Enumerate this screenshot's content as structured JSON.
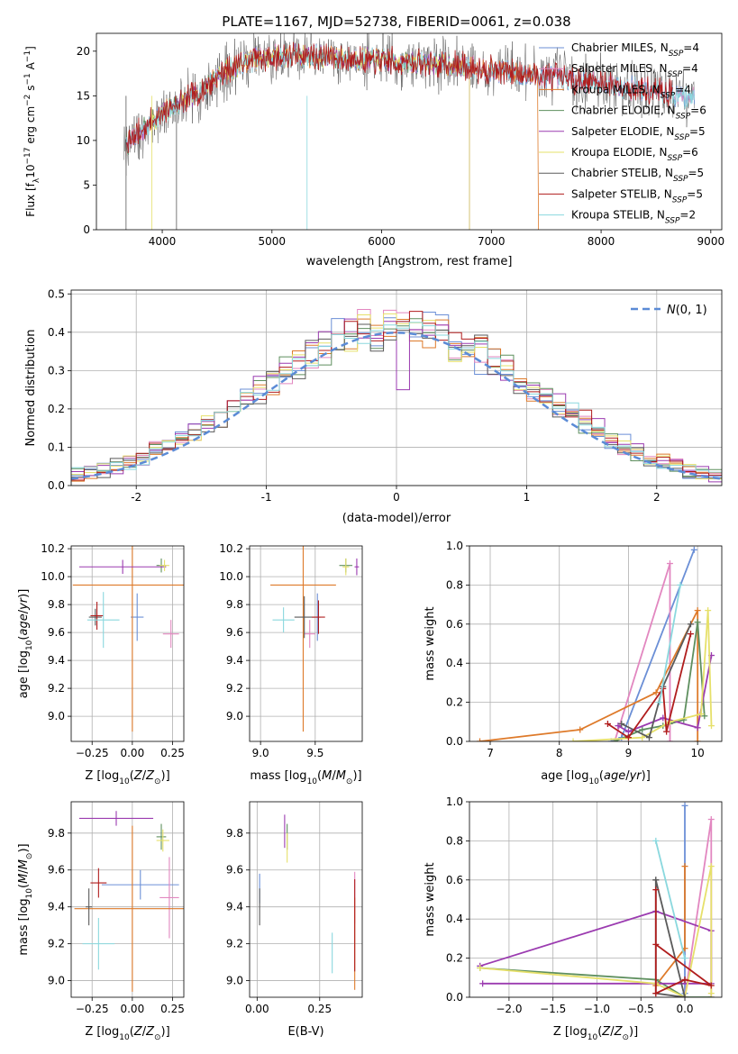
{
  "figure_title": "PLATE=1167, MJD=52738, FIBERID=0061, z=0.038",
  "colors": {
    "series": [
      "#6b8fd6",
      "#e287c0",
      "#de7a2a",
      "#5e8f5e",
      "#9b3bb0",
      "#e6e06a",
      "#5a5a5a",
      "#b01d1d",
      "#8ad8de"
    ],
    "grid": "#b0b0b0"
  },
  "models": [
    {
      "name": "Chabrier MILES, N",
      "sub": "SSP",
      "tail": "=4"
    },
    {
      "name": "Salpeter MILES, N",
      "sub": "SSP",
      "tail": "=4"
    },
    {
      "name": "Kroupa MILES, N",
      "sub": "SSP",
      "tail": "=4"
    },
    {
      "name": "Chabrier ELODIE, N",
      "sub": "SSP",
      "tail": "=6"
    },
    {
      "name": "Salpeter ELODIE, N",
      "sub": "SSP",
      "tail": "=5"
    },
    {
      "name": "Kroupa ELODIE, N",
      "sub": "SSP",
      "tail": "=6"
    },
    {
      "name": "Chabrier STELIB, N",
      "sub": "SSP",
      "tail": "=5"
    },
    {
      "name": "Salpeter STELIB, N",
      "sub": "SSP",
      "tail": "=5"
    },
    {
      "name": "Kroupa STELIB, N",
      "sub": "SSP",
      "tail": "=2"
    }
  ],
  "chart_data": [
    {
      "id": "spectrum",
      "type": "line",
      "xlabel": "wavelength [Angstrom, rest frame]",
      "ylabel": "Flux [fλ10⁻¹⁷ erg cm⁻² s⁻¹ A⁻¹]",
      "xlim": [
        3400,
        9100
      ],
      "ylim": [
        0,
        22
      ],
      "xticks": [
        4000,
        5000,
        6000,
        7000,
        8000,
        9000
      ],
      "yticks": [
        0,
        5,
        10,
        15,
        20
      ],
      "continuum_x": [
        3670,
        3800,
        3950,
        4100,
        4300,
        4500,
        4700,
        4900,
        5100,
        5300,
        5600,
        5900,
        6200,
        6500,
        6800,
        7100,
        7400,
        7700,
        8000,
        8300,
        8600,
        8850
      ],
      "continuum_y": [
        9.5,
        11,
        12.5,
        13.8,
        15,
        17.2,
        18.5,
        19.2,
        19.5,
        19.5,
        19.3,
        19,
        18.8,
        18.6,
        18.2,
        17.8,
        17.3,
        16.9,
        16.4,
        15.9,
        15.3,
        14.8
      ],
      "series_ranges": [
        [
          3670,
          8850
        ],
        [
          3670,
          8850
        ],
        [
          3670,
          7420
        ],
        [
          3670,
          6800
        ],
        [
          3670,
          6800
        ],
        [
          3900,
          6800
        ],
        [
          3650,
          8850
        ],
        [
          3670,
          8650
        ],
        [
          3670,
          8850
        ]
      ]
    },
    {
      "id": "residuals",
      "type": "histogram",
      "xlabel": "(data-model)/error",
      "ylabel": "Normed distribution",
      "xlim": [
        -2.5,
        2.5
      ],
      "ylim": [
        0,
        0.51
      ],
      "xticks": [
        -2,
        -1,
        0,
        1,
        2
      ],
      "yticks": [
        0.0,
        0.1,
        0.2,
        0.3,
        0.4,
        0.5
      ],
      "bin_width": 0.1,
      "reference": {
        "label": "N(0,1)",
        "mean": 0,
        "sigma": 1
      }
    },
    {
      "id": "age_vs_Z",
      "type": "scatter",
      "xlabel": "Z [log10(Z/Z⊙)]",
      "ylabel": "age  [log10(age/yr)]",
      "xlim": [
        -0.38,
        0.32
      ],
      "ylim": [
        8.82,
        10.22
      ],
      "xticks": [
        -0.25,
        0,
        0.25
      ],
      "xticklabels": [
        "−0.25",
        "0.00",
        "0.25"
      ],
      "yticks": [
        9.0,
        9.2,
        9.4,
        9.6,
        9.8,
        10.0,
        10.2
      ],
      "points": [
        {
          "x": 0.03,
          "y": 9.71,
          "xerr": 0.04,
          "yerr": 0.17
        },
        {
          "x": 0.24,
          "y": 9.59,
          "xerr": 0.05,
          "yerr": 0.1
        },
        {
          "x": 0.0,
          "y": 9.94,
          "xerr": 0.37,
          "yerr": 1.05
        },
        {
          "x": 0.18,
          "y": 10.08,
          "xerr": 0.03,
          "yerr": 0.05
        },
        {
          "x": -0.06,
          "y": 10.07,
          "xerr": 0.27,
          "yerr": 0.05
        },
        {
          "x": 0.2,
          "y": 10.08,
          "xerr": 0.03,
          "yerr": 0.04
        },
        {
          "x": -0.23,
          "y": 9.71,
          "xerr": 0.04,
          "yerr": 0.06
        },
        {
          "x": -0.22,
          "y": 9.72,
          "xerr": 0.04,
          "yerr": 0.1
        },
        {
          "x": -0.18,
          "y": 9.69,
          "xerr": 0.1,
          "yerr": 0.2
        }
      ]
    },
    {
      "id": "age_vs_mass",
      "type": "scatter",
      "xlabel": "mass [log10(M/M⊙)]",
      "ylabel": "",
      "xlim": [
        8.9,
        9.93
      ],
      "ylim": [
        8.82,
        10.22
      ],
      "xticks": [
        9.0,
        9.5
      ],
      "xticklabels": [
        "9.0",
        "9.5"
      ],
      "yticks": [
        9.0,
        9.2,
        9.4,
        9.6,
        9.8,
        10.0,
        10.2
      ],
      "points": [
        {
          "x": 9.52,
          "y": 9.71,
          "xerr": 0.03,
          "yerr": 0.17
        },
        {
          "x": 9.45,
          "y": 9.59,
          "xerr": 0.05,
          "yerr": 0.1
        },
        {
          "x": 9.39,
          "y": 9.94,
          "xerr": 0.3,
          "yerr": 1.05
        },
        {
          "x": 9.78,
          "y": 10.08,
          "xerr": 0.06,
          "yerr": 0.05
        },
        {
          "x": 9.88,
          "y": 10.07,
          "xerr": 0.02,
          "yerr": 0.06
        },
        {
          "x": 9.78,
          "y": 10.07,
          "xerr": 0.03,
          "yerr": 0.06
        },
        {
          "x": 9.4,
          "y": 9.71,
          "xerr": 0.09,
          "yerr": 0.15
        },
        {
          "x": 9.53,
          "y": 9.71,
          "xerr": 0.06,
          "yerr": 0.12
        },
        {
          "x": 9.21,
          "y": 9.69,
          "xerr": 0.1,
          "yerr": 0.09
        }
      ]
    },
    {
      "id": "weight_vs_age",
      "type": "line",
      "xlabel": "age  [log10(age/yr)]",
      "ylabel": "mass weight",
      "xlim": [
        6.7,
        10.35
      ],
      "ylim": [
        0,
        1.0
      ],
      "xticks": [
        7,
        8,
        9,
        10
      ],
      "yticks": [
        0.0,
        0.2,
        0.4,
        0.6,
        0.8,
        1.0
      ],
      "series": [
        {
          "x": [
            8.75,
            8.9,
            9.95
          ],
          "y": [
            0.0,
            0.02,
            0.98
          ]
        },
        {
          "x": [
            8.8,
            9.6,
            9.6,
            9.6
          ],
          "y": [
            0.0,
            0.91,
            0.09,
            0.0
          ]
        },
        {
          "x": [
            6.85,
            8.3,
            9.4,
            10.0,
            10.0
          ],
          "y": [
            0.0,
            0.06,
            0.25,
            0.67,
            0.0
          ]
        },
        {
          "x": [
            8.8,
            9.2,
            9.5,
            9.8,
            10.0,
            10.1
          ],
          "y": [
            0.0,
            0.06,
            0.08,
            0.11,
            0.61,
            0.13
          ]
        },
        {
          "x": [
            8.85,
            9.0,
            9.5,
            10.0,
            10.2
          ],
          "y": [
            0.08,
            0.05,
            0.12,
            0.07,
            0.44
          ]
        },
        {
          "x": [
            8.2,
            9.2,
            9.6,
            10.05,
            10.15,
            10.2
          ],
          "y": [
            0.0,
            0.02,
            0.1,
            0.14,
            0.67,
            0.08
          ]
        },
        {
          "x": [
            8.9,
            9.3,
            9.5,
            9.9
          ],
          "y": [
            0.09,
            0.02,
            0.28,
            0.6
          ]
        },
        {
          "x": [
            8.7,
            9.0,
            9.5,
            9.55,
            9.9
          ],
          "y": [
            0.09,
            0.02,
            0.27,
            0.05,
            0.55
          ]
        },
        {
          "x": [
            9.45,
            9.75
          ],
          "y": [
            0.2,
            0.8
          ]
        }
      ]
    },
    {
      "id": "mass_vs_Z",
      "type": "scatter",
      "xlabel": "Z [log10(Z/Z⊙)]",
      "ylabel": "mass [log10(M/M⊙)]",
      "xlim": [
        -0.38,
        0.32
      ],
      "ylim": [
        8.91,
        9.97
      ],
      "xticks": [
        -0.25,
        0,
        0.25
      ],
      "xticklabels": [
        "−0.25",
        "0.00",
        "0.25"
      ],
      "yticks": [
        9.0,
        9.2,
        9.4,
        9.6,
        9.8
      ],
      "points": [
        {
          "x": 0.05,
          "y": 9.52,
          "xerr": 0.24,
          "yerr": 0.08
        },
        {
          "x": 0.23,
          "y": 9.45,
          "xerr": 0.06,
          "yerr": 0.22
        },
        {
          "x": 0.0,
          "y": 9.39,
          "xerr": 0.36,
          "yerr": 0.45
        },
        {
          "x": 0.18,
          "y": 9.78,
          "xerr": 0.03,
          "yerr": 0.07
        },
        {
          "x": -0.1,
          "y": 9.88,
          "xerr": 0.23,
          "yerr": 0.04
        },
        {
          "x": 0.19,
          "y": 9.76,
          "xerr": 0.04,
          "yerr": 0.06
        },
        {
          "x": -0.27,
          "y": 9.4,
          "xerr": 0.02,
          "yerr": 0.1
        },
        {
          "x": -0.21,
          "y": 9.53,
          "xerr": 0.05,
          "yerr": 0.08
        },
        {
          "x": -0.21,
          "y": 9.2,
          "xerr": 0.1,
          "yerr": 0.14
        }
      ]
    },
    {
      "id": "mass_vs_EBV",
      "type": "scatter",
      "xlabel": "E(B-V)",
      "ylabel": "",
      "xlim": [
        -0.03,
        0.42
      ],
      "ylim": [
        8.91,
        9.97
      ],
      "xticks": [
        0.0,
        0.25
      ],
      "xticklabels": [
        "0.00",
        "0.25"
      ],
      "yticks": [
        9.0,
        9.2,
        9.4,
        9.6,
        9.8
      ],
      "points": [
        {
          "x": 0.01,
          "y": 9.5,
          "xerr": 0.0,
          "yerr": 0.08
        },
        {
          "x": 0.39,
          "y": 9.45,
          "xerr": 0.0,
          "yerr": 0.14
        },
        {
          "x": 0.39,
          "y": 9.2,
          "xerr": 0.0,
          "yerr": 0.25
        },
        {
          "x": 0.12,
          "y": 9.78,
          "xerr": 0.0,
          "yerr": 0.07
        },
        {
          "x": 0.11,
          "y": 9.81,
          "xerr": 0.0,
          "yerr": 0.09
        },
        {
          "x": 0.12,
          "y": 9.72,
          "xerr": 0.0,
          "yerr": 0.08
        },
        {
          "x": 0.01,
          "y": 9.4,
          "xerr": 0.0,
          "yerr": 0.1
        },
        {
          "x": 0.39,
          "y": 9.3,
          "xerr": 0.0,
          "yerr": 0.25
        },
        {
          "x": 0.3,
          "y": 9.15,
          "xerr": 0.0,
          "yerr": 0.11
        }
      ]
    },
    {
      "id": "weight_vs_Z",
      "type": "line",
      "xlabel": "Z [log10(Z/Z⊙)]",
      "ylabel": "mass weight",
      "xlim": [
        -2.45,
        0.42
      ],
      "ylim": [
        0,
        1.0
      ],
      "xticks": [
        -2.0,
        -1.5,
        -1.0,
        -0.5,
        0.0
      ],
      "xticklabels": [
        "−2.0",
        "−1.5",
        "−1.0",
        "−0.5",
        "0.0"
      ],
      "yticks": [
        0.0,
        0.2,
        0.4,
        0.6,
        0.8,
        1.0
      ],
      "series": [
        {
          "x": [
            0.0,
            0.0,
            0.0
          ],
          "y": [
            0.02,
            0.98,
            0.0
          ]
        },
        {
          "x": [
            0.0,
            0.3,
            0.3
          ],
          "y": [
            0.0,
            0.91,
            0.0
          ]
        },
        {
          "x": [
            0.0,
            0.0,
            -0.33
          ],
          "y": [
            0.67,
            0.25,
            0.06
          ]
        },
        {
          "x": [
            -2.33,
            -0.33,
            0.0,
            0.3
          ],
          "y": [
            0.15,
            0.09,
            0.0,
            0.0
          ]
        },
        {
          "x": [
            -2.33,
            -0.33,
            0.3,
            0.3,
            -2.3
          ],
          "y": [
            0.16,
            0.44,
            0.34,
            0.07,
            0.07
          ]
        },
        {
          "x": [
            -2.33,
            -0.33,
            0.0,
            0.3,
            0.3
          ],
          "y": [
            0.15,
            0.07,
            0.0,
            0.67,
            0.02
          ]
        },
        {
          "x": [
            -0.33,
            -0.33,
            0.0,
            -0.33
          ],
          "y": [
            0.6,
            0.02,
            0.0,
            0.6
          ]
        },
        {
          "x": [
            -0.33,
            -0.33,
            0.0,
            0.3,
            -0.33
          ],
          "y": [
            0.55,
            0.02,
            0.09,
            0.06,
            0.27
          ]
        },
        {
          "x": [
            -0.33,
            0.0
          ],
          "y": [
            0.8,
            0.2
          ]
        }
      ]
    }
  ]
}
